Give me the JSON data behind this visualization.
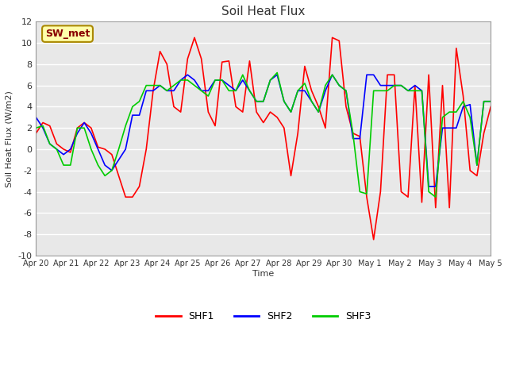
{
  "title": "Soil Heat Flux",
  "ylabel": "Soil Heat Flux (W/m2)",
  "xlabel": "Time",
  "ylim": [
    -10,
    12
  ],
  "yticks": [
    -10,
    -8,
    -6,
    -4,
    -2,
    0,
    2,
    4,
    6,
    8,
    10,
    12
  ],
  "xtick_labels": [
    "Apr 20",
    "Apr 21",
    "Apr 22",
    "Apr 23",
    "Apr 24",
    "Apr 25",
    "Apr 26",
    "Apr 27",
    "Apr 28",
    "Apr 29",
    "Apr 30",
    "May 1",
    "May 2",
    "May 3",
    "May 4",
    "May 5"
  ],
  "line_colors": [
    "#ff0000",
    "#0000ff",
    "#00cc00"
  ],
  "line_names": [
    "SHF1",
    "SHF2",
    "SHF3"
  ],
  "line_width": 1.2,
  "fig_bg_color": "#ffffff",
  "plot_bg_color": "#e8e8e8",
  "annotation_text": "SW_met",
  "annotation_bg": "#ffffaa",
  "annotation_border": "#aa8800",
  "annotation_text_color": "#880000",
  "shf1": [
    1.5,
    2.5,
    2.2,
    0.5,
    0.0,
    -0.3,
    2.0,
    2.5,
    2.0,
    0.2,
    0.0,
    -0.5,
    -2.5,
    -4.5,
    -4.5,
    -3.5,
    0.0,
    5.5,
    9.2,
    8.0,
    4.0,
    3.5,
    8.5,
    10.5,
    8.5,
    3.5,
    2.2,
    8.2,
    8.3,
    4.0,
    3.5,
    8.3,
    3.5,
    2.5,
    3.5,
    3.0,
    2.0,
    -2.5,
    1.5,
    7.8,
    5.5,
    4.0,
    2.0,
    10.5,
    10.2,
    4.0,
    1.5,
    1.2,
    -4.5,
    -8.5,
    -4.0,
    7.0,
    7.0,
    -4.0,
    -4.5,
    6.0,
    -5.0,
    7.0,
    -5.5,
    6.0,
    -5.5,
    9.5,
    5.0,
    -2.0,
    -2.5,
    1.5,
    4.0
  ],
  "shf2": [
    3.0,
    2.0,
    0.5,
    0.0,
    -0.5,
    0.0,
    1.5,
    2.5,
    1.5,
    0.0,
    -1.5,
    -2.0,
    -1.0,
    0.0,
    3.2,
    3.2,
    5.5,
    5.5,
    6.0,
    5.5,
    5.5,
    6.5,
    7.0,
    6.5,
    5.5,
    5.5,
    6.5,
    6.5,
    6.0,
    5.5,
    6.5,
    5.5,
    4.5,
    4.5,
    6.5,
    7.0,
    4.5,
    3.5,
    5.5,
    5.5,
    4.5,
    3.5,
    5.5,
    7.0,
    6.0,
    5.5,
    1.0,
    1.0,
    7.0,
    7.0,
    6.0,
    6.0,
    6.0,
    6.0,
    5.5,
    6.0,
    5.5,
    -3.5,
    -3.5,
    2.0,
    2.0,
    2.0,
    4.0,
    4.2,
    -1.5,
    4.5,
    4.5
  ],
  "shf3": [
    2.0,
    2.2,
    0.5,
    0.0,
    -1.5,
    -1.5,
    2.0,
    2.0,
    0.0,
    -1.5,
    -2.5,
    -2.0,
    0.0,
    2.2,
    4.0,
    4.5,
    6.0,
    6.0,
    6.0,
    5.5,
    6.0,
    6.5,
    6.5,
    6.0,
    5.5,
    5.0,
    6.5,
    6.5,
    5.5,
    5.5,
    7.0,
    5.5,
    4.5,
    4.5,
    6.5,
    7.2,
    4.5,
    3.5,
    5.5,
    6.2,
    4.5,
    3.5,
    6.0,
    7.0,
    6.0,
    5.5,
    1.5,
    -4.0,
    -4.2,
    5.5,
    5.5,
    5.5,
    6.0,
    6.0,
    5.5,
    5.5,
    5.5,
    -4.0,
    -4.5,
    3.0,
    3.5,
    3.5,
    4.5,
    3.0,
    -1.5,
    4.5,
    4.5
  ]
}
